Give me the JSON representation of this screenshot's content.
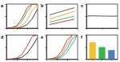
{
  "chart_data": [
    {
      "type": "line",
      "title": "a",
      "tick_labels": false,
      "x": [
        1.2,
        1.3,
        1.4,
        1.5,
        1.6,
        1.7,
        1.8
      ],
      "xlim": [
        1.2,
        1.8
      ],
      "xticks": [
        1.2,
        1.4,
        1.6,
        1.8
      ],
      "ylim": [
        0,
        100
      ],
      "yticks": [
        0,
        50,
        100
      ],
      "series": [
        {
          "color": "#333333",
          "values": [
            0,
            0,
            1,
            4,
            15,
            40,
            80
          ]
        },
        {
          "color": "#e8a13a",
          "values": [
            0,
            0,
            2,
            10,
            35,
            75,
            100
          ]
        },
        {
          "color": "#3cb44b",
          "values": [
            0,
            1,
            6,
            28,
            70,
            98,
            100
          ]
        },
        {
          "color": "#d62728",
          "values": [
            0,
            2,
            10,
            40,
            85,
            100,
            100
          ]
        }
      ]
    },
    {
      "type": "line",
      "title": "b",
      "tick_labels": false,
      "x": [
        0.2,
        1.8
      ],
      "xlim": [
        0,
        2
      ],
      "xticks": [
        0,
        1,
        2
      ],
      "ylim": [
        1.4,
        1.8
      ],
      "yticks": [
        1.4,
        1.6,
        1.8
      ],
      "series": [
        {
          "color": "#555555",
          "values": [
            1.62,
            1.74
          ]
        },
        {
          "color": "#e8a13a",
          "values": [
            1.55,
            1.68
          ]
        },
        {
          "color": "#3cb44b",
          "values": [
            1.5,
            1.6
          ]
        },
        {
          "color": "#d62728",
          "values": [
            1.46,
            1.55
          ]
        }
      ]
    },
    {
      "type": "line",
      "title": "c",
      "tick_labels": false,
      "x": [
        0,
        10,
        20,
        30,
        40,
        50
      ],
      "xlim": [
        0,
        50
      ],
      "xticks": [
        0,
        25,
        50
      ],
      "ylim": [
        0,
        20
      ],
      "yticks": [
        0,
        10,
        20
      ],
      "series": [
        {
          "color": "#444444",
          "values": [
            10,
            10.2,
            10.1,
            10,
            9.9,
            10
          ]
        }
      ]
    },
    {
      "type": "line",
      "title": "d",
      "tick_labels": false,
      "x": [
        1.2,
        1.3,
        1.4,
        1.5,
        1.6,
        1.7,
        1.8
      ],
      "xlim": [
        1.2,
        1.8
      ],
      "xticks": [
        1.2,
        1.4,
        1.6,
        1.8
      ],
      "ylim": [
        0,
        100
      ],
      "yticks": [
        0,
        50,
        100
      ],
      "series": [
        {
          "color": "#222222",
          "values": [
            0,
            0,
            2,
            8,
            25,
            55,
            90
          ]
        },
        {
          "color": "#d62728",
          "values": [
            0,
            1,
            5,
            20,
            55,
            95,
            100
          ]
        }
      ]
    },
    {
      "type": "line",
      "title": "e",
      "tick_labels": false,
      "x": [
        1.2,
        1.3,
        1.4,
        1.5,
        1.6,
        1.7,
        1.8
      ],
      "xlim": [
        1.2,
        1.8
      ],
      "xticks": [
        1.2,
        1.4,
        1.6,
        1.8
      ],
      "ylim": [
        0,
        100
      ],
      "yticks": [
        0,
        50,
        100
      ],
      "series": [
        {
          "color": "#3cb44b",
          "values": [
            0,
            0,
            2,
            9,
            30,
            65,
            100
          ]
        },
        {
          "color": "#4a7fc1",
          "values": [
            0,
            1,
            4,
            16,
            45,
            85,
            100
          ]
        },
        {
          "color": "#e8a13a",
          "values": [
            0,
            1,
            6,
            24,
            60,
            100,
            100
          ]
        },
        {
          "color": "#d62728",
          "values": [
            0,
            2,
            9,
            35,
            80,
            100,
            100
          ]
        }
      ]
    },
    {
      "type": "bar",
      "title": "f",
      "tick_labels": false,
      "categories": [
        null,
        null,
        null
      ],
      "values": [
        280,
        200,
        150
      ],
      "colors": [
        "#f2c12e",
        "#3cb44b",
        "#4a7fc1"
      ],
      "ylim": [
        0,
        400
      ],
      "yticks": [
        0,
        200,
        400
      ]
    }
  ]
}
